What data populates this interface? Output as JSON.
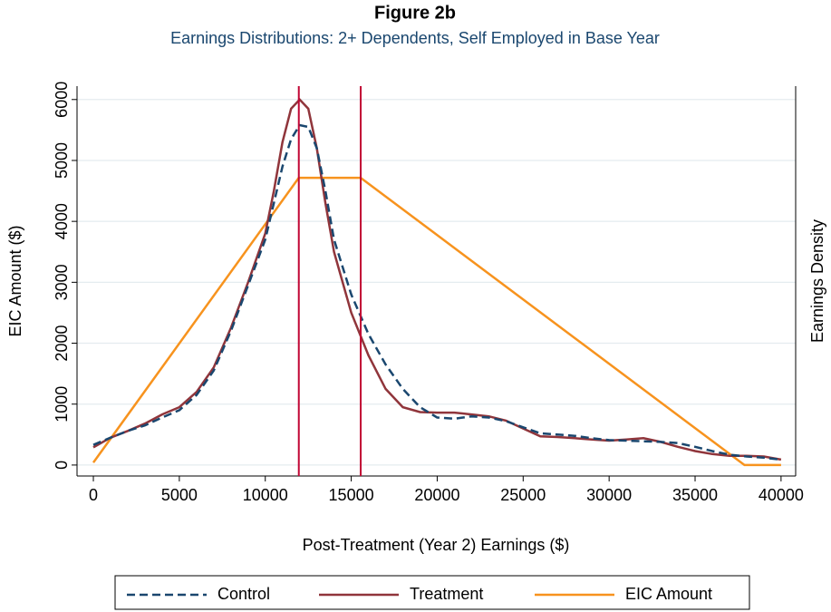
{
  "chart_data": {
    "type": "line",
    "title": "Figure 2b",
    "subtitle": "Earnings Distributions:  2+ Dependents, Self Employed in Base Year",
    "xlabel": "Post-Treatment (Year 2) Earnings ($)",
    "ylabel": "EIC Amount ($)",
    "y2label": "Earnings Density",
    "xlim": [
      -950,
      40850
    ],
    "ylim": [
      -180,
      6220
    ],
    "xticks": [
      0,
      5000,
      10000,
      15000,
      20000,
      25000,
      30000,
      35000,
      40000
    ],
    "yticks": [
      0,
      1000,
      2000,
      3000,
      4000,
      5000,
      6000
    ],
    "grid": true,
    "vlines": [
      11950,
      15550
    ],
    "vline_color": "#c10534",
    "series": [
      {
        "name": "Control",
        "color": "#1a476f",
        "dash": true,
        "x": [
          0,
          1000,
          2000,
          3000,
          4000,
          5000,
          6000,
          7000,
          8000,
          9000,
          10000,
          10500,
          11000,
          11500,
          12000,
          12500,
          13000,
          13500,
          14000,
          15000,
          16000,
          17000,
          18000,
          19000,
          20000,
          21000,
          22000,
          23000,
          24000,
          25000,
          26000,
          27000,
          28000,
          29000,
          30000,
          31000,
          32000,
          33000,
          34000,
          35000,
          36000,
          37000,
          38000,
          39000,
          40000
        ],
        "values": [
          330,
          450,
          560,
          650,
          780,
          900,
          1150,
          1550,
          2200,
          2950,
          3700,
          4300,
          4900,
          5350,
          5580,
          5550,
          5200,
          4500,
          3700,
          2800,
          2150,
          1650,
          1250,
          950,
          780,
          760,
          800,
          780,
          720,
          620,
          520,
          500,
          480,
          440,
          410,
          400,
          390,
          380,
          360,
          300,
          230,
          170,
          140,
          120,
          90
        ]
      },
      {
        "name": "Treatment",
        "color": "#90353b",
        "dash": false,
        "x": [
          0,
          1000,
          2000,
          3000,
          4000,
          5000,
          6000,
          7000,
          8000,
          9000,
          10000,
          10500,
          11000,
          11500,
          12000,
          12500,
          13000,
          13500,
          14000,
          15000,
          16000,
          17000,
          18000,
          19000,
          20000,
          21000,
          22000,
          23000,
          24000,
          25000,
          26000,
          27000,
          28000,
          29000,
          30000,
          31000,
          32000,
          33000,
          34000,
          35000,
          36000,
          37000,
          38000,
          39000,
          40000
        ],
        "values": [
          290,
          450,
          560,
          680,
          830,
          950,
          1200,
          1600,
          2250,
          3000,
          3800,
          4500,
          5300,
          5850,
          6000,
          5850,
          5200,
          4300,
          3500,
          2500,
          1800,
          1250,
          950,
          870,
          860,
          860,
          830,
          800,
          730,
          600,
          470,
          460,
          440,
          420,
          400,
          420,
          440,
          380,
          300,
          230,
          180,
          150,
          150,
          140,
          90
        ]
      },
      {
        "name": "EIC Amount",
        "color": "#f7931e",
        "dash": false,
        "x": [
          0,
          11950,
          15550,
          37870,
          40000
        ],
        "values": [
          40,
          4716,
          4716,
          0,
          0
        ]
      }
    ]
  }
}
